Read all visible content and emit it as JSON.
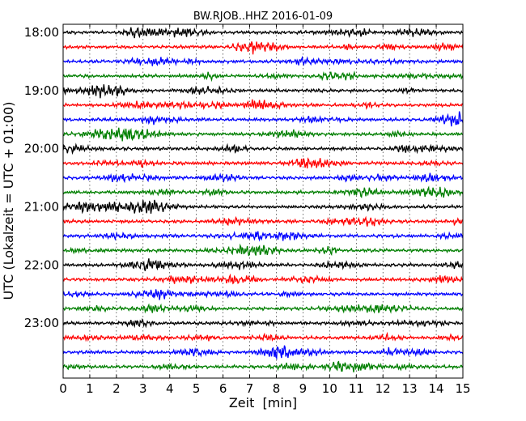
{
  "chart_data": {
    "type": "line",
    "title": "BW.RJOB..HHZ 2016-01-09",
    "xlabel": "Zeit  [min]",
    "ylabel": "UTC (Lokalzeit = UTC + 01:00)",
    "xlim": [
      0,
      15
    ],
    "x_ticks": [
      "0",
      "1",
      "2",
      "3",
      "4",
      "5",
      "6",
      "7",
      "8",
      "9",
      "10",
      "11",
      "12",
      "13",
      "14",
      "15"
    ],
    "y_ticks": [
      "18:00",
      "19:00",
      "20:00",
      "21:00",
      "22:00",
      "23:00"
    ],
    "grid": "vertical dotted",
    "trace_colors": [
      "#000000",
      "#ff0000",
      "#0000ff",
      "#007f00"
    ],
    "trace_minutes": 15,
    "traces_start": "18:00",
    "traces_end": "23:45",
    "trace_count": 24
  }
}
